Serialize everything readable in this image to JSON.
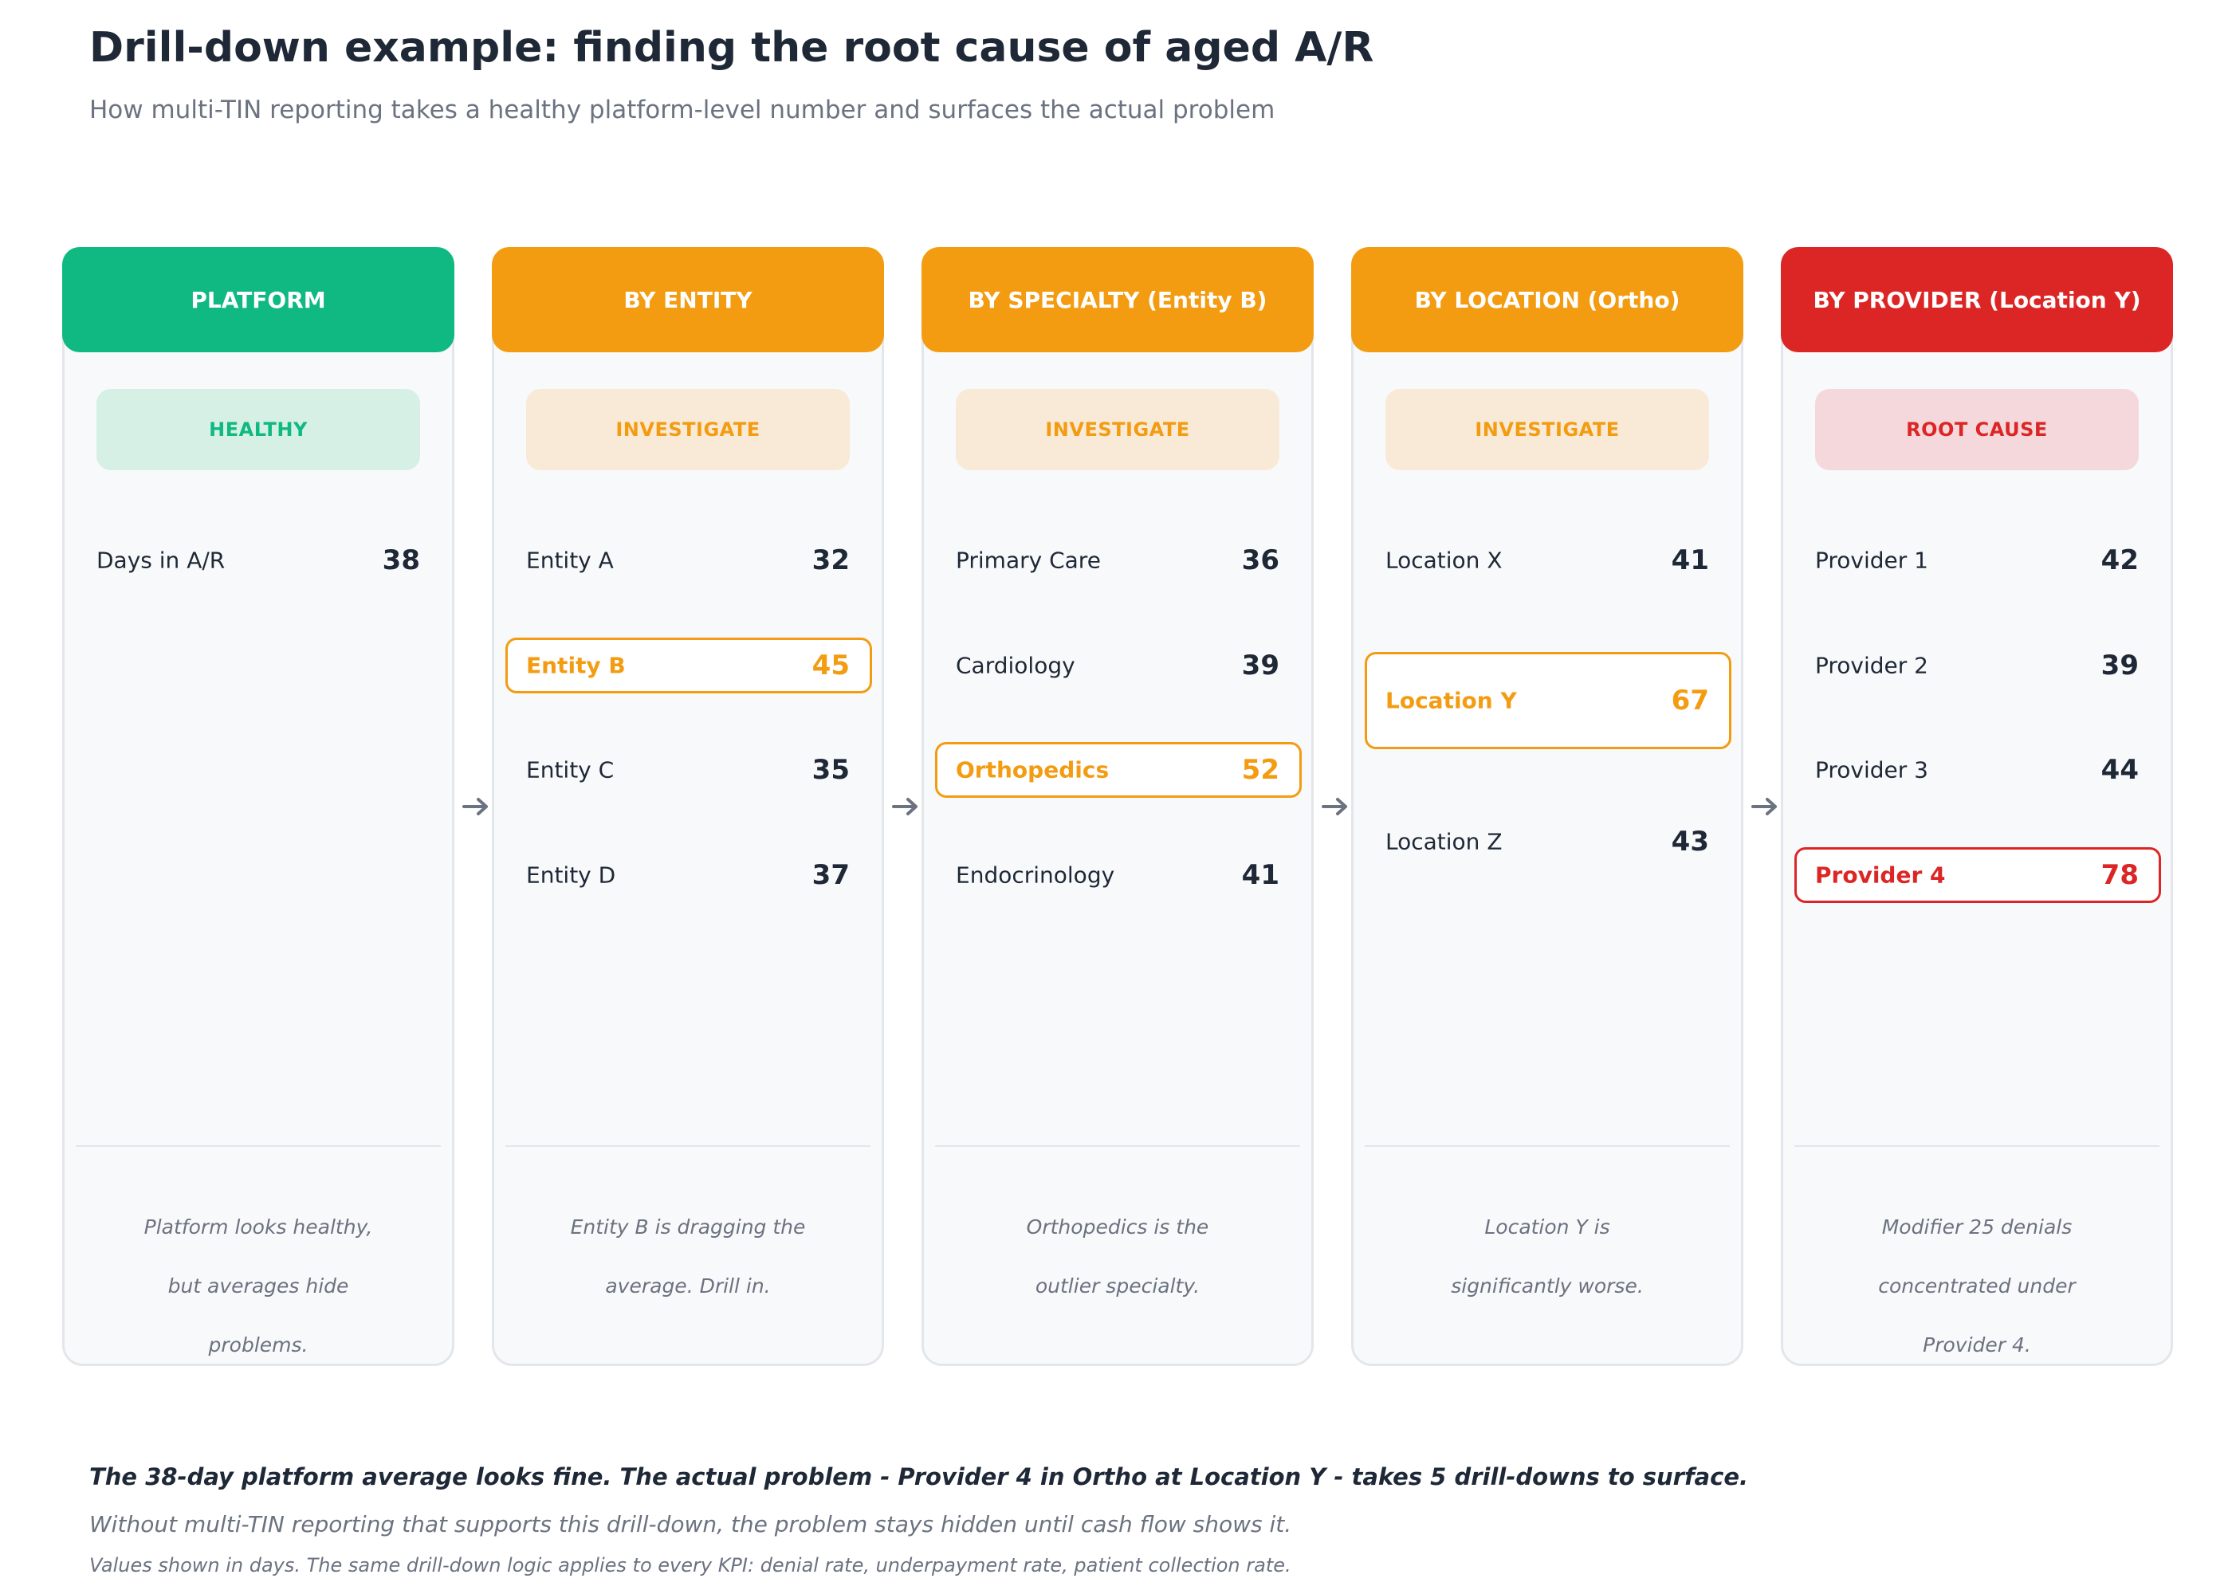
{
  "title": "Drill-down example: finding the root cause of aged A/R",
  "subtitle": "How multi-TIN reporting takes a healthy platform-level number and surfaces the actual problem",
  "colors": {
    "green": "#10b981",
    "orange": "#f39c12",
    "red": "#dc2626",
    "dark": "#1e2836",
    "muted": "#6b7280"
  },
  "stages": [
    {
      "header": "PLATFORM",
      "status": "HEALTHY",
      "items": [
        {
          "label": "Days in A/R",
          "value": "38"
        }
      ],
      "note_lines": [
        "Platform looks healthy,",
        "but averages hide",
        "problems."
      ]
    },
    {
      "header": "BY ENTITY",
      "status": "INVESTIGATE",
      "items": [
        {
          "label": "Entity A",
          "value": "32"
        },
        {
          "label": "Entity B",
          "value": "45",
          "highlight": true
        },
        {
          "label": "Entity C",
          "value": "35"
        },
        {
          "label": "Entity D",
          "value": "37"
        }
      ],
      "note_lines": [
        "Entity B is dragging the",
        "average. Drill in."
      ]
    },
    {
      "header": "BY SPECIALTY (Entity B)",
      "status": "INVESTIGATE",
      "items": [
        {
          "label": "Primary Care",
          "value": "36"
        },
        {
          "label": "Cardiology",
          "value": "39"
        },
        {
          "label": "Orthopedics",
          "value": "52",
          "highlight": true
        },
        {
          "label": "Endocrinology",
          "value": "41"
        }
      ],
      "note_lines": [
        "Orthopedics is the",
        "outlier specialty."
      ]
    },
    {
      "header": "BY LOCATION (Ortho)",
      "status": "INVESTIGATE",
      "items": [
        {
          "label": "Location X",
          "value": "41"
        },
        {
          "label": "Location Y",
          "value": "67",
          "highlight": true
        },
        {
          "label": "Location Z",
          "value": "43"
        }
      ],
      "note_lines": [
        "Location Y is",
        "significantly worse."
      ]
    },
    {
      "header": "BY PROVIDER (Location Y)",
      "status": "ROOT CAUSE",
      "items": [
        {
          "label": "Provider 1",
          "value": "42"
        },
        {
          "label": "Provider 2",
          "value": "39"
        },
        {
          "label": "Provider 3",
          "value": "44"
        },
        {
          "label": "Provider 4",
          "value": "78",
          "highlight": true
        }
      ],
      "note_lines": [
        "Modifier 25 denials",
        "concentrated under",
        "Provider 4."
      ]
    }
  ],
  "footer": {
    "headline": "The 38-day platform average looks fine. The actual problem - Provider 4 in Ortho at Location Y - takes 5 drill-downs to surface.",
    "subline": "Without multi-TIN reporting that supports this drill-down, the problem stays hidden until cash flow shows it.",
    "footnote": "Values shown in days. The same drill-down logic applies to every KPI: denial rate, underpayment rate, patient collection rate."
  }
}
